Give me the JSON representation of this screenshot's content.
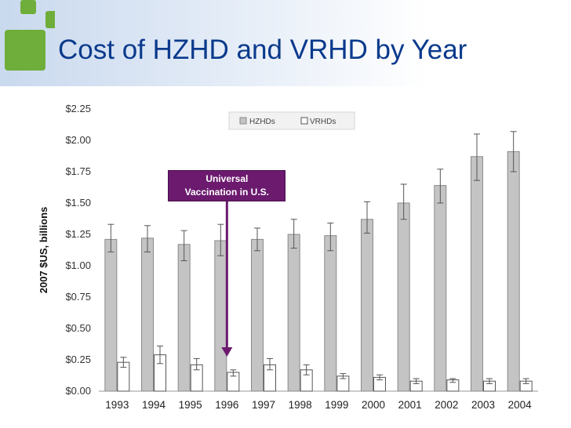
{
  "slide": {
    "title": "Cost of HZHD and VRHD by Year"
  },
  "annotation": {
    "line1": "Universal",
    "line2": "Vaccination in U.S.",
    "target_year": "1996"
  },
  "colors": {
    "title": "#0a3a8c",
    "logo_green": "#6fae3a",
    "hzhd_bar": "#c4c4c4",
    "vrhd_bar": "#ffffff",
    "annotation_fill": "#6b1a6e"
  },
  "chart_data": {
    "type": "bar",
    "title": "",
    "xlabel": "",
    "ylabel": "2007 $US, billions",
    "ylim": [
      0,
      2.25
    ],
    "yticks": [
      0,
      0.25,
      0.5,
      0.75,
      1.0,
      1.25,
      1.5,
      1.75,
      2.0,
      2.25
    ],
    "ytick_labels": [
      "$0.00",
      "$0.25",
      "$0.50",
      "$0.75",
      "$1.00",
      "$1.25",
      "$1.50",
      "$1.75",
      "$2.00",
      "$2.25"
    ],
    "grid": false,
    "legend_position": "top-center",
    "categories": [
      "1993",
      "1994",
      "1995",
      "1996",
      "1997",
      "1998",
      "1999",
      "2000",
      "2001",
      "2002",
      "2003",
      "2004"
    ],
    "series": [
      {
        "name": "HZHDs",
        "values": [
          1.21,
          1.22,
          1.17,
          1.2,
          1.21,
          1.25,
          1.24,
          1.37,
          1.5,
          1.64,
          1.87,
          1.91
        ],
        "error_low": [
          1.11,
          1.11,
          1.04,
          1.08,
          1.12,
          1.14,
          1.12,
          1.26,
          1.37,
          1.5,
          1.68,
          1.75
        ],
        "error_high": [
          1.33,
          1.32,
          1.28,
          1.33,
          1.3,
          1.37,
          1.34,
          1.51,
          1.65,
          1.77,
          2.05,
          2.07
        ]
      },
      {
        "name": "VRHDs",
        "values": [
          0.23,
          0.29,
          0.21,
          0.15,
          0.21,
          0.17,
          0.12,
          0.11,
          0.08,
          0.09,
          0.08,
          0.08
        ],
        "error_low": [
          0.19,
          0.22,
          0.17,
          0.12,
          0.17,
          0.13,
          0.1,
          0.09,
          0.06,
          0.07,
          0.06,
          0.06
        ],
        "error_high": [
          0.27,
          0.36,
          0.26,
          0.17,
          0.26,
          0.21,
          0.14,
          0.13,
          0.1,
          0.1,
          0.1,
          0.1
        ]
      }
    ]
  }
}
